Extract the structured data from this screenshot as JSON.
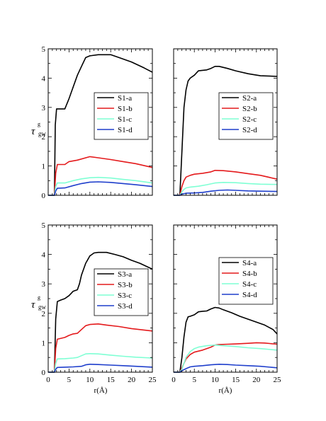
{
  "figure": {
    "ylabel_main": "τ",
    "ylabel_sup": "g",
    "ylabel_sub": "gw",
    "xlabel": "r(Å)"
  },
  "chart_data": [
    {
      "type": "line",
      "panel": "top-left",
      "xlim": [
        0,
        25
      ],
      "ylim": [
        0,
        5
      ],
      "xticks": [
        0,
        5,
        10,
        15,
        20,
        25
      ],
      "yticks": [
        0,
        1,
        2,
        3,
        4,
        5
      ],
      "show_xticklabels": false,
      "show_yticklabels": true,
      "legend_position": "center-right",
      "series": [
        {
          "name": "S1-a",
          "color": "#000000",
          "x": [
            0,
            1.5,
            1.7,
            2.0,
            3.0,
            4.0,
            5.0,
            6.0,
            7.0,
            8.0,
            9.0,
            10.0,
            12.0,
            15.0,
            17.0,
            20.0,
            23.0,
            25.0
          ],
          "y": [
            0,
            0,
            2.4,
            2.95,
            2.95,
            2.95,
            3.3,
            3.7,
            4.1,
            4.4,
            4.7,
            4.76,
            4.8,
            4.8,
            4.7,
            4.55,
            4.35,
            4.2
          ]
        },
        {
          "name": "S1-b",
          "color": "#e41a1c",
          "x": [
            0,
            1.5,
            1.8,
            2.2,
            4.0,
            5.0,
            7.0,
            10.0,
            12.0,
            15.0,
            18.0,
            21.0,
            25.0
          ],
          "y": [
            0,
            0,
            0.75,
            1.05,
            1.05,
            1.15,
            1.2,
            1.32,
            1.28,
            1.22,
            1.15,
            1.08,
            0.95
          ]
        },
        {
          "name": "S1-c",
          "color": "#7fffd4",
          "x": [
            0,
            1.5,
            1.8,
            2.2,
            4.0,
            6.0,
            8.0,
            10.0,
            12.0,
            15.0,
            18.0,
            21.0,
            25.0
          ],
          "y": [
            0,
            0,
            0.3,
            0.42,
            0.42,
            0.5,
            0.56,
            0.6,
            0.61,
            0.59,
            0.54,
            0.5,
            0.42
          ]
        },
        {
          "name": "S1-d",
          "color": "#1f3fcc",
          "x": [
            0,
            1.5,
            1.8,
            2.2,
            4.0,
            6.0,
            8.0,
            10.0,
            12.0,
            15.0,
            18.0,
            21.0,
            25.0
          ],
          "y": [
            0,
            0,
            0.15,
            0.24,
            0.25,
            0.33,
            0.4,
            0.45,
            0.46,
            0.44,
            0.4,
            0.36,
            0.3
          ]
        }
      ]
    },
    {
      "type": "line",
      "panel": "top-right",
      "xlim": [
        0,
        25
      ],
      "ylim": [
        0,
        5
      ],
      "xticks": [
        0,
        5,
        10,
        15,
        20,
        25
      ],
      "yticks": [
        0,
        1,
        2,
        3,
        4,
        5
      ],
      "show_xticklabels": false,
      "show_yticklabels": false,
      "legend_position": "center-right",
      "series": [
        {
          "name": "S2-a",
          "color": "#000000",
          "x": [
            0,
            1.5,
            2.0,
            2.5,
            3.0,
            3.5,
            4.0,
            5.0,
            6.0,
            8.0,
            9.0,
            10.0,
            11.0,
            13.0,
            15.0,
            18.0,
            21.0,
            25.0
          ],
          "y": [
            0,
            0,
            1.5,
            3.0,
            3.6,
            3.9,
            4.0,
            4.1,
            4.25,
            4.28,
            4.33,
            4.4,
            4.4,
            4.33,
            4.25,
            4.15,
            4.08,
            4.06
          ]
        },
        {
          "name": "S2-b",
          "color": "#e41a1c",
          "x": [
            0,
            1.5,
            2.0,
            2.5,
            3.0,
            4.0,
            5.0,
            7.0,
            9.0,
            10.0,
            12.0,
            15.0,
            18.0,
            21.0,
            25.0
          ],
          "y": [
            0,
            0,
            0.3,
            0.5,
            0.62,
            0.68,
            0.72,
            0.75,
            0.8,
            0.85,
            0.84,
            0.8,
            0.74,
            0.68,
            0.55
          ]
        },
        {
          "name": "S2-c",
          "color": "#7fffd4",
          "x": [
            0,
            1.5,
            2.0,
            2.5,
            3.0,
            4.0,
            6.0,
            8.0,
            10.0,
            12.0,
            15.0,
            18.0,
            21.0,
            25.0
          ],
          "y": [
            0,
            0,
            0.12,
            0.2,
            0.25,
            0.28,
            0.31,
            0.36,
            0.42,
            0.44,
            0.43,
            0.4,
            0.38,
            0.37
          ]
        },
        {
          "name": "S2-d",
          "color": "#1f3fcc",
          "x": [
            0,
            1.5,
            2.0,
            3.0,
            5.0,
            7.0,
            9.0,
            11.0,
            13.0,
            15.0,
            18.0,
            21.0,
            25.0
          ],
          "y": [
            0,
            0,
            0.04,
            0.07,
            0.08,
            0.1,
            0.14,
            0.17,
            0.18,
            0.17,
            0.15,
            0.14,
            0.13
          ]
        }
      ]
    },
    {
      "type": "line",
      "panel": "bottom-left",
      "xlim": [
        0,
        25
      ],
      "ylim": [
        0,
        5
      ],
      "xticks": [
        0,
        5,
        10,
        15,
        20,
        25
      ],
      "yticks": [
        0,
        1,
        2,
        3,
        4,
        5
      ],
      "show_xticklabels": true,
      "show_yticklabels": true,
      "legend_position": "center-right",
      "series": [
        {
          "name": "S3-a",
          "color": "#000000",
          "x": [
            0,
            1.5,
            1.8,
            2.2,
            3.0,
            4.0,
            5.0,
            6.0,
            7.0,
            7.5,
            8.0,
            9.0,
            10.0,
            11.0,
            12.0,
            14.0,
            16.0,
            18.0,
            20.0,
            22.0,
            25.0
          ],
          "y": [
            0,
            0,
            1.8,
            2.4,
            2.45,
            2.5,
            2.6,
            2.75,
            2.8,
            3.0,
            3.3,
            3.7,
            3.95,
            4.05,
            4.07,
            4.07,
            4.0,
            3.92,
            3.8,
            3.7,
            3.5
          ]
        },
        {
          "name": "S3-b",
          "color": "#e41a1c",
          "x": [
            0,
            1.5,
            1.8,
            2.2,
            4.0,
            5.0,
            6.0,
            7.0,
            8.0,
            9.0,
            10.0,
            12.0,
            14.0,
            17.0,
            20.0,
            25.0
          ],
          "y": [
            0,
            0,
            0.8,
            1.12,
            1.18,
            1.25,
            1.3,
            1.32,
            1.45,
            1.58,
            1.62,
            1.64,
            1.6,
            1.55,
            1.48,
            1.4
          ]
        },
        {
          "name": "S3-c",
          "color": "#7fffd4",
          "x": [
            0,
            1.5,
            1.8,
            2.2,
            4.0,
            6.0,
            7.0,
            8.0,
            9.0,
            10.0,
            12.0,
            15.0,
            18.0,
            21.0,
            25.0
          ],
          "y": [
            0,
            0,
            0.3,
            0.45,
            0.46,
            0.48,
            0.5,
            0.56,
            0.62,
            0.63,
            0.62,
            0.58,
            0.54,
            0.51,
            0.48
          ]
        },
        {
          "name": "S3-d",
          "color": "#1f3fcc",
          "x": [
            0,
            1.5,
            1.8,
            2.2,
            4.0,
            6.0,
            8.0,
            9.0,
            10.0,
            12.0,
            15.0,
            18.0,
            21.0,
            25.0
          ],
          "y": [
            0,
            0,
            0.1,
            0.16,
            0.17,
            0.18,
            0.2,
            0.25,
            0.27,
            0.26,
            0.24,
            0.22,
            0.2,
            0.17
          ]
        }
      ]
    },
    {
      "type": "line",
      "panel": "bottom-right",
      "xlim": [
        0,
        25
      ],
      "ylim": [
        0,
        5
      ],
      "xticks": [
        0,
        5,
        10,
        15,
        20,
        25
      ],
      "yticks": [
        0,
        1,
        2,
        3,
        4,
        5
      ],
      "show_xticklabels": true,
      "show_yticklabels": false,
      "legend_position": "upper-right",
      "series": [
        {
          "name": "S4-a",
          "color": "#000000",
          "x": [
            0,
            1.5,
            2.0,
            2.5,
            3.0,
            3.5,
            4.0,
            5.0,
            6.0,
            7.0,
            8.0,
            9.0,
            10.0,
            11.0,
            12.0,
            14.0,
            16.0,
            18.0,
            20.0,
            22.0,
            24.0,
            25.0
          ],
          "y": [
            0,
            0,
            0.5,
            1.2,
            1.7,
            1.88,
            1.9,
            1.95,
            2.05,
            2.07,
            2.08,
            2.15,
            2.2,
            2.18,
            2.12,
            2.02,
            1.9,
            1.8,
            1.7,
            1.6,
            1.45,
            1.3
          ]
        },
        {
          "name": "S4-b",
          "color": "#e41a1c",
          "x": [
            0,
            1.5,
            2.0,
            2.5,
            3.0,
            4.0,
            5.0,
            7.0,
            9.0,
            10.0,
            11.0,
            13.0,
            15.0,
            18.0,
            20.0,
            22.0,
            25.0
          ],
          "y": [
            0,
            0,
            0.15,
            0.3,
            0.45,
            0.6,
            0.68,
            0.75,
            0.85,
            0.92,
            0.94,
            0.95,
            0.96,
            0.98,
            1.0,
            0.99,
            0.95
          ]
        },
        {
          "name": "S4-c",
          "color": "#7fffd4",
          "x": [
            0,
            1.5,
            2.0,
            2.5,
            3.0,
            4.0,
            5.0,
            6.0,
            8.0,
            10.0,
            12.0,
            15.0,
            18.0,
            21.0,
            25.0
          ],
          "y": [
            0,
            0,
            0.1,
            0.3,
            0.5,
            0.7,
            0.8,
            0.85,
            0.9,
            0.92,
            0.9,
            0.87,
            0.83,
            0.8,
            0.75
          ]
        },
        {
          "name": "S4-d",
          "color": "#1f3fcc",
          "x": [
            0,
            1.5,
            2.0,
            3.0,
            4.0,
            5.0,
            7.0,
            9.0,
            11.0,
            13.0,
            15.0,
            18.0,
            21.0,
            25.0
          ],
          "y": [
            0,
            0,
            0.05,
            0.12,
            0.18,
            0.2,
            0.22,
            0.25,
            0.27,
            0.26,
            0.24,
            0.22,
            0.2,
            0.15
          ]
        }
      ]
    }
  ]
}
